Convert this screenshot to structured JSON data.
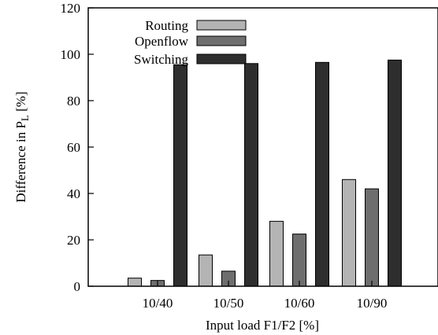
{
  "chart_data": {
    "type": "bar",
    "categories": [
      "10/40",
      "10/50",
      "10/60",
      "10/90"
    ],
    "series": [
      {
        "name": "Routing",
        "values": [
          3.5,
          13.5,
          28,
          46
        ],
        "color": "#b4b4b4"
      },
      {
        "name": "Openflow",
        "values": [
          2.5,
          6.5,
          22.5,
          42
        ],
        "color": "#6e6e6e"
      },
      {
        "name": "Switching",
        "values": [
          95.5,
          96,
          96.5,
          97.5
        ],
        "color": "#2e2e2e"
      }
    ],
    "xlabel": "Input load F1/F2 [%]",
    "ylabel": "Difference in P",
    "ylabel_sub": "L",
    "ylabel_suffix": " [%]",
    "ylim": [
      0,
      120
    ],
    "yticks": [
      "0",
      "20",
      "40",
      "60",
      "80",
      "100",
      "120"
    ],
    "grid": false,
    "legend_position": "top-left"
  }
}
